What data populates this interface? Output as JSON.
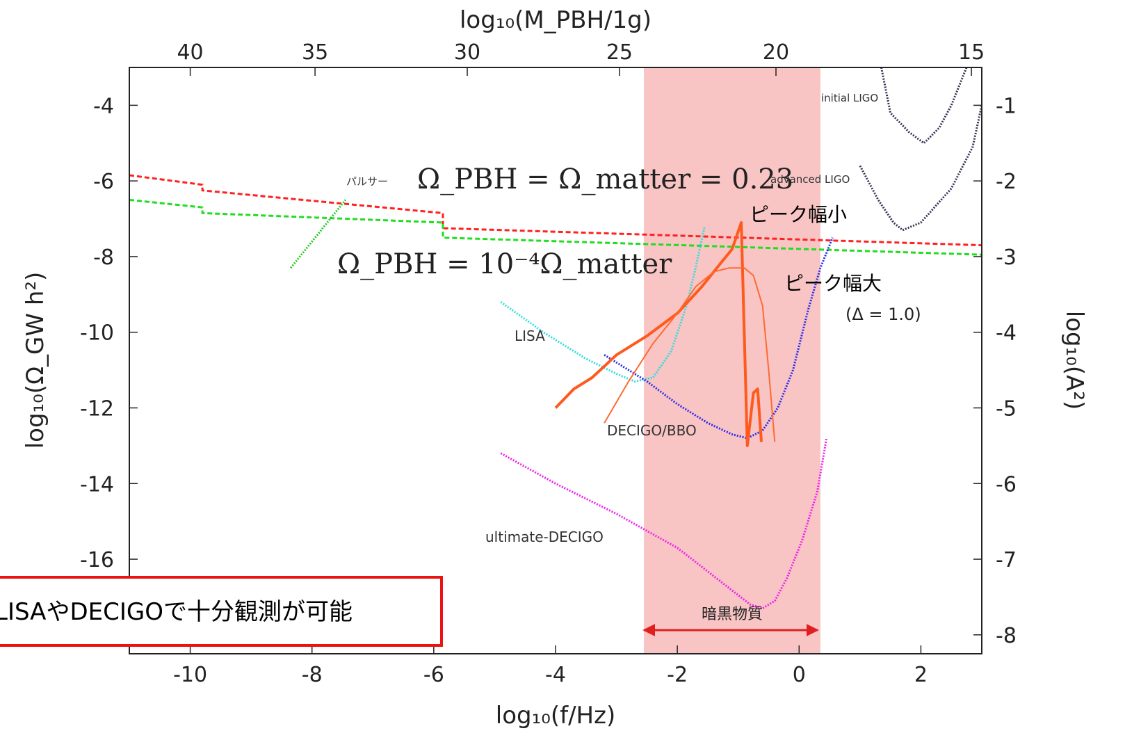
{
  "chart_data": {
    "type": "line",
    "title": "",
    "xlabel": "log₁₀(f/Hz)",
    "ylabel": "log₁₀(Ω_GW h²)",
    "x2label": "log₁₀(M_PBH/1g)",
    "y2label": "log₁₀(A²)",
    "xlim": [
      -11,
      3
    ],
    "ylim": [
      -18.5,
      -3.0
    ],
    "x_ticks": [
      -10,
      -8,
      -6,
      -4,
      -2,
      0,
      2
    ],
    "y_ticks": [
      -4,
      -6,
      -8,
      -10,
      -12,
      -14,
      -16
    ],
    "x2_ticks": [
      {
        "label": "40",
        "x": -10.0
      },
      {
        "label": "35",
        "x": -7.95
      },
      {
        "label": "30",
        "x": -5.45
      },
      {
        "label": "25",
        "x": -2.95
      },
      {
        "label": "20",
        "x": -0.38
      },
      {
        "label": "15",
        "x": 2.83
      }
    ],
    "y2_ticks": [
      {
        "label": "-1",
        "y": -4.0
      },
      {
        "label": "-2",
        "y": -6.0
      },
      {
        "label": "-3",
        "y": -8.0
      },
      {
        "label": "-4",
        "y": -10.0
      },
      {
        "label": "-5",
        "y": -12.0
      },
      {
        "label": "-6",
        "y": -14.0
      },
      {
        "label": "-7",
        "y": -16.0
      },
      {
        "label": "-8",
        "y": -18.0
      }
    ],
    "shaded_region": {
      "x": [
        -2.55,
        0.35
      ],
      "color": "#f8c4c4",
      "label": "暗黒物質"
    },
    "series": [
      {
        "name": "",
        "color": "#ff2020",
        "style": "dashed",
        "points": [
          [
            -11,
            -5.85
          ],
          [
            -9.8,
            -6.1
          ],
          [
            -9.8,
            -6.25
          ],
          [
            -5.85,
            -6.85
          ],
          [
            -5.85,
            -7.25
          ],
          [
            3,
            -7.7
          ]
        ]
      },
      {
        "name": "",
        "color": "#20dd20",
        "style": "dashed",
        "points": [
          [
            -11,
            -6.5
          ],
          [
            -9.8,
            -6.7
          ],
          [
            -9.8,
            -6.85
          ],
          [
            -5.85,
            -7.1
          ],
          [
            -5.85,
            -7.5
          ],
          [
            3,
            -7.95
          ]
        ]
      },
      {
        "name": "パルサー",
        "color": "#22cc22",
        "style": "dotted",
        "points": [
          [
            -8.35,
            -8.3
          ],
          [
            -7.45,
            -6.5
          ]
        ]
      },
      {
        "name": "LISA",
        "color": "#33dddd",
        "style": "dotted",
        "points": [
          [
            -4.9,
            -9.2
          ],
          [
            -4.2,
            -10.0
          ],
          [
            -3.5,
            -10.7
          ],
          [
            -3.0,
            -11.1
          ],
          [
            -2.7,
            -11.3
          ],
          [
            -2.4,
            -11.2
          ],
          [
            -2.1,
            -10.5
          ],
          [
            -1.85,
            -9.3
          ],
          [
            -1.7,
            -8.3
          ],
          [
            -1.55,
            -7.2
          ]
        ]
      },
      {
        "name": "DECIGO/BBO",
        "color": "#2a2aee",
        "style": "dotted",
        "points": [
          [
            -3.2,
            -10.6
          ],
          [
            -2.5,
            -11.3
          ],
          [
            -2.0,
            -11.9
          ],
          [
            -1.5,
            -12.4
          ],
          [
            -1.1,
            -12.7
          ],
          [
            -0.85,
            -12.8
          ],
          [
            -0.6,
            -12.6
          ],
          [
            -0.35,
            -12.0
          ],
          [
            -0.1,
            -11.0
          ],
          [
            0.15,
            -9.4
          ],
          [
            0.35,
            -8.3
          ],
          [
            0.55,
            -7.5
          ]
        ]
      },
      {
        "name": "ultimate-DECIGO",
        "color": "#ee22ee",
        "style": "dotted",
        "points": [
          [
            -4.9,
            -13.2
          ],
          [
            -4.0,
            -14.0
          ],
          [
            -3.0,
            -14.8
          ],
          [
            -2.0,
            -15.7
          ],
          [
            -1.2,
            -16.7
          ],
          [
            -0.8,
            -17.2
          ],
          [
            -0.6,
            -17.3
          ],
          [
            -0.4,
            -17.1
          ],
          [
            -0.2,
            -16.5
          ],
          [
            0.05,
            -15.5
          ],
          [
            0.3,
            -14.2
          ],
          [
            0.45,
            -12.8
          ]
        ]
      },
      {
        "name": "initial LIGO",
        "color": "#333355",
        "style": "dotted",
        "points": [
          [
            1.35,
            -3.0
          ],
          [
            1.5,
            -4.2
          ],
          [
            1.8,
            -4.7
          ],
          [
            2.05,
            -5.0
          ],
          [
            2.3,
            -4.6
          ],
          [
            2.5,
            -4.0
          ],
          [
            2.75,
            -3.0
          ]
        ]
      },
      {
        "name": "advanced LIGO",
        "color": "#333355",
        "style": "dotted",
        "points": [
          [
            1.0,
            -5.6
          ],
          [
            1.3,
            -6.5
          ],
          [
            1.55,
            -7.1
          ],
          [
            1.7,
            -7.3
          ],
          [
            2.0,
            -7.1
          ],
          [
            2.5,
            -6.2
          ],
          [
            2.85,
            -5.1
          ],
          [
            3.0,
            -4.0
          ]
        ]
      },
      {
        "name": "ピーク幅小",
        "color": "#ff5a1e",
        "style": "solid-thick",
        "points": [
          [
            -4.0,
            -12.0
          ],
          [
            -3.7,
            -11.5
          ],
          [
            -3.4,
            -11.2
          ],
          [
            -3.2,
            -10.9
          ],
          [
            -3.0,
            -10.6
          ],
          [
            -2.5,
            -10.1
          ],
          [
            -2.0,
            -9.5
          ],
          [
            -1.6,
            -8.8
          ],
          [
            -1.3,
            -8.2
          ],
          [
            -1.1,
            -7.8
          ],
          [
            -0.95,
            -7.1
          ],
          [
            -0.85,
            -13.0
          ],
          [
            -0.75,
            -11.6
          ],
          [
            -0.68,
            -11.5
          ],
          [
            -0.62,
            -12.9
          ]
        ]
      },
      {
        "name": "ピーク幅大",
        "color": "#ff6a30",
        "style": "solid",
        "points": [
          [
            -3.2,
            -12.4
          ],
          [
            -2.8,
            -11.3
          ],
          [
            -2.4,
            -10.3
          ],
          [
            -2.0,
            -9.5
          ],
          [
            -1.7,
            -8.8
          ],
          [
            -1.4,
            -8.4
          ],
          [
            -1.15,
            -8.3
          ],
          [
            -0.9,
            -8.3
          ],
          [
            -0.75,
            -8.5
          ],
          [
            -0.6,
            -9.3
          ],
          [
            -0.5,
            -11.0
          ],
          [
            -0.4,
            -12.9
          ]
        ]
      }
    ],
    "annotations": [
      {
        "text": "Ω_PBH = Ω_matter = 0.23",
        "x": -5.3,
        "y": -6.2
      },
      {
        "text": "Ω_PBH = 10⁻⁴Ω_matter",
        "x": -7.3,
        "y": -8.6
      },
      {
        "text": "(Δ = 1.0)",
        "x": 0.85,
        "y": -9.9
      },
      {
        "text": "暗黒物質",
        "x": -1.1,
        "y": -17.7
      }
    ]
  },
  "callout": {
    "text": "LISAやDECIGOで十分観測が可能"
  }
}
